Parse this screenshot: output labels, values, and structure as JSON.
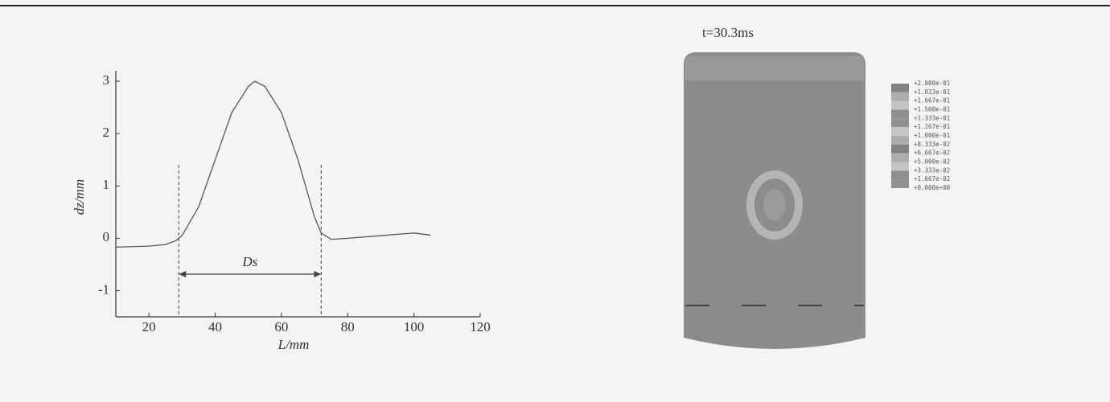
{
  "chart_data": {
    "type": "line",
    "y_label": "dz/mm",
    "x_label": "L/mm",
    "annotation": "Ds",
    "x": [
      10,
      20,
      25,
      28,
      30,
      35,
      40,
      45,
      50,
      52,
      55,
      60,
      65,
      70,
      72,
      75,
      80,
      90,
      100,
      105
    ],
    "series": [
      {
        "color": "#555555",
        "values": [
          -0.17,
          -0.15,
          -0.12,
          -0.05,
          0.05,
          0.6,
          1.5,
          2.4,
          2.9,
          3.0,
          2.9,
          2.4,
          1.5,
          0.4,
          0.1,
          -0.02,
          0.0,
          0.05,
          0.1,
          0.06
        ]
      }
    ],
    "markers": [
      29,
      72
    ],
    "xlim": [
      10,
      120
    ],
    "ylim": [
      -1.5,
      3.2
    ],
    "xticks": [
      20,
      40,
      60,
      80,
      100,
      120
    ],
    "yticks": [
      -1,
      0,
      1,
      2,
      3
    ]
  },
  "simulation": {
    "time_label": "t=30.3ms",
    "legend_labels": [
      "+2.000e-01",
      "+1.833e-01",
      "+1.667e-01",
      "+1.500e-01",
      "+1.333e-01",
      "+1.167e-01",
      "+1.000e-01",
      "+8.333e-02",
      "+6.667e-02",
      "+5.000e-02",
      "+3.333e-02",
      "+1.667e-02",
      "+0.000e+00"
    ]
  }
}
